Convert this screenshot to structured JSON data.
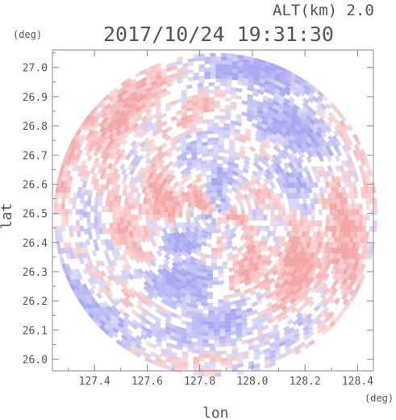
{
  "chart_data": {
    "type": "heatmap",
    "title": "2017/10/24 19:31:30",
    "subtitle": "ALT(km) 2.0",
    "xlabel": "lon",
    "ylabel": "lat",
    "xunit": "(deg)",
    "yunit": "(deg)",
    "xlim": [
      127.24,
      128.46
    ],
    "ylim": [
      25.96,
      27.06
    ],
    "xticks": [
      127.4,
      127.6,
      127.8,
      128.0,
      128.2,
      128.4
    ],
    "xtick_labels": [
      "127.4",
      "127.6",
      "127.8",
      "128.0",
      "128.2",
      "128.4"
    ],
    "yticks": [
      26.0,
      26.1,
      26.2,
      26.3,
      26.4,
      26.5,
      26.6,
      26.7,
      26.8,
      26.9,
      27.0
    ],
    "ytick_labels": [
      "26.0",
      "26.1",
      "26.2",
      "26.3",
      "26.4",
      "26.5",
      "26.6",
      "26.7",
      "26.8",
      "26.9",
      "27.0"
    ],
    "center": {
      "lon": 127.86,
      "lat": 26.495
    },
    "radius_deg_lat": 0.555,
    "colors": {
      "positive": "#f4a6a6",
      "negative": "#a8a8f2",
      "neutral": "#ffffff",
      "axis": "#888888",
      "text": "#555555"
    }
  }
}
